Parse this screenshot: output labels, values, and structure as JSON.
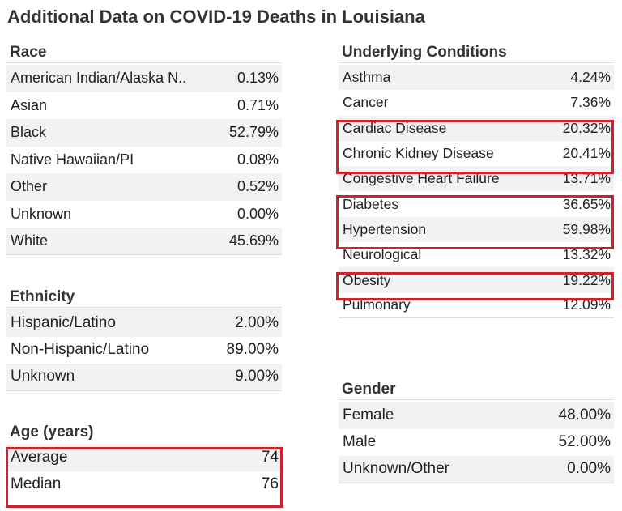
{
  "title": "Additional Data on COVID-19 Deaths in Louisiana",
  "race": {
    "heading": "Race",
    "rows": [
      {
        "label": "American Indian/Alaska N..",
        "value": "0.13%"
      },
      {
        "label": "Asian",
        "value": "0.71%"
      },
      {
        "label": "Black",
        "value": "52.79%"
      },
      {
        "label": "Native Hawaiian/PI",
        "value": "0.08%"
      },
      {
        "label": "Other",
        "value": "0.52%"
      },
      {
        "label": "Unknown",
        "value": "0.00%"
      },
      {
        "label": "White",
        "value": "45.69%"
      }
    ]
  },
  "ethnicity": {
    "heading": "Ethnicity",
    "rows": [
      {
        "label": "Hispanic/Latino",
        "value": "2.00%"
      },
      {
        "label": "Non-Hispanic/Latino",
        "value": "89.00%"
      },
      {
        "label": "Unknown",
        "value": "9.00%"
      }
    ]
  },
  "age": {
    "heading": "Age (years)",
    "rows": [
      {
        "label": "Average",
        "value": "74"
      },
      {
        "label": "Median",
        "value": "76"
      }
    ]
  },
  "conditions": {
    "heading": "Underlying Conditions",
    "rows": [
      {
        "label": "Asthma",
        "value": "4.24%"
      },
      {
        "label": "Cancer",
        "value": "7.36%"
      },
      {
        "label": "Cardiac Disease",
        "value": "20.32%"
      },
      {
        "label": "Chronic Kidney Disease",
        "value": "20.41%"
      },
      {
        "label": "Congestive Heart Failure",
        "value": "13.71%"
      },
      {
        "label": "Diabetes",
        "value": "36.65%"
      },
      {
        "label": "Hypertension",
        "value": "59.98%"
      },
      {
        "label": "Neurological",
        "value": "13.32%"
      },
      {
        "label": "Obesity",
        "value": "19.22%"
      },
      {
        "label": "Pulmonary",
        "value": "12.09%"
      }
    ]
  },
  "gender": {
    "heading": "Gender",
    "rows": [
      {
        "label": "Female",
        "value": "48.00%"
      },
      {
        "label": "Male",
        "value": "52.00%"
      },
      {
        "label": "Unknown/Other",
        "value": "0.00%"
      }
    ]
  },
  "colors": {
    "highlight": "#d0212d",
    "alt_row": "#f2f2f2",
    "rule": "#dddddd"
  }
}
